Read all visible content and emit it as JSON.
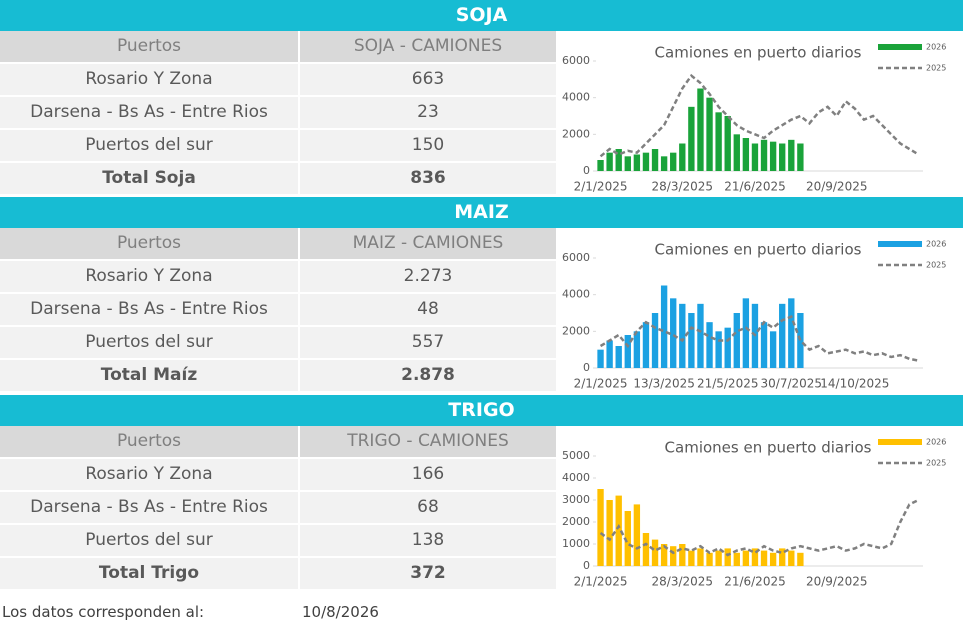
{
  "sections": [
    {
      "title": "SOJA",
      "table": {
        "header": [
          "Puertos",
          "SOJA - CAMIONES"
        ],
        "rows": [
          [
            "Rosario Y Zona",
            "663"
          ],
          [
            "Darsena - Bs As - Entre Rios",
            "23"
          ],
          [
            "Puertos del sur",
            "150"
          ],
          [
            "Total Soja",
            "836"
          ]
        ]
      }
    },
    {
      "title": "MAIZ",
      "table": {
        "header": [
          "Puertos",
          "MAIZ - CAMIONES"
        ],
        "rows": [
          [
            "Rosario Y Zona",
            "2.273"
          ],
          [
            "Darsena - Bs As - Entre Rios",
            "48"
          ],
          [
            "Puertos del sur",
            "557"
          ],
          [
            "Total Maíz",
            "2.878"
          ]
        ]
      }
    },
    {
      "title": "TRIGO",
      "table": {
        "header": [
          "Puertos",
          "TRIGO - CAMIONES"
        ],
        "rows": [
          [
            "Rosario Y Zona",
            "166"
          ],
          [
            "Darsena - Bs As - Entre Rios",
            "68"
          ],
          [
            "Puertos del sur",
            "138"
          ],
          [
            "Total Trigo",
            "372"
          ]
        ]
      }
    }
  ],
  "footer": {
    "label": "Los datos corresponden al:",
    "date": "10/8/2026"
  },
  "chart_data": [
    {
      "type": "bar",
      "title": "Camiones en puerto diarios",
      "categories": [
        "2/1/2025",
        null,
        null,
        null,
        null,
        null,
        null,
        null,
        null,
        "28/3/2025",
        null,
        null,
        null,
        null,
        null,
        null,
        null,
        "21/6/2025",
        null,
        null,
        null,
        null,
        null,
        null,
        null,
        null,
        "20/9/2025",
        null,
        null,
        null,
        null,
        null,
        null,
        null,
        null,
        null
      ],
      "ylim": [
        0,
        6000
      ],
      "yticks": [
        0,
        2000,
        4000,
        6000
      ],
      "series": [
        {
          "name": "2026",
          "type": "bar",
          "color": "#1aa33a",
          "values": [
            600,
            1000,
            1200,
            800,
            900,
            1000,
            1200,
            800,
            1000,
            1500,
            3500,
            4500,
            4000,
            3200,
            3000,
            2000,
            1800,
            1500,
            1700,
            1600,
            1500,
            1700,
            1500,
            null,
            null,
            null,
            null,
            null,
            null,
            null,
            null,
            null,
            null,
            null,
            null,
            null
          ]
        },
        {
          "name": "2025",
          "type": "line",
          "color": "#808080",
          "values": [
            800,
            1200,
            900,
            1100,
            1000,
            1500,
            2000,
            2500,
            3500,
            4500,
            5200,
            4800,
            4200,
            3500,
            3000,
            2500,
            2200,
            2000,
            1800,
            2200,
            2500,
            2800,
            3000,
            2600,
            3200,
            3500,
            3000,
            3800,
            3400,
            2800,
            3000,
            2500,
            2000,
            1500,
            1200,
            900
          ]
        }
      ]
    },
    {
      "type": "bar",
      "title": "Camiones en puerto diarios",
      "categories": [
        "2/1/2025",
        null,
        null,
        null,
        null,
        null,
        null,
        "13/3/2025",
        null,
        null,
        null,
        null,
        null,
        null,
        "21/5/2025",
        null,
        null,
        null,
        null,
        null,
        null,
        "30/7/2025",
        null,
        null,
        null,
        null,
        null,
        null,
        "14/10/2025",
        null,
        null,
        null,
        null,
        null,
        null,
        null
      ],
      "ylim": [
        0,
        6000
      ],
      "yticks": [
        0,
        2000,
        4000,
        6000
      ],
      "series": [
        {
          "name": "2026",
          "type": "bar",
          "color": "#1ba1e2",
          "values": [
            1000,
            1500,
            1200,
            1800,
            2000,
            2500,
            3000,
            4500,
            3800,
            3500,
            3000,
            3500,
            2500,
            2000,
            2200,
            3000,
            3800,
            3500,
            2500,
            2000,
            3500,
            3800,
            3000,
            null,
            null,
            null,
            null,
            null,
            null,
            null,
            null,
            null,
            null,
            null,
            null,
            null
          ]
        },
        {
          "name": "2025",
          "type": "line",
          "color": "#808080",
          "values": [
            1200,
            1500,
            1800,
            1200,
            2000,
            2500,
            2200,
            2000,
            1800,
            1500,
            2200,
            2000,
            1700,
            1500,
            1500,
            2000,
            2200,
            1800,
            2500,
            2200,
            2600,
            2800,
            1500,
            1000,
            1200,
            800,
            900,
            1000,
            800,
            900,
            700,
            800,
            600,
            700,
            500,
            400
          ]
        }
      ]
    },
    {
      "type": "bar",
      "title": "Camiones en puerto diarios",
      "categories": [
        "2/1/2025",
        null,
        null,
        null,
        null,
        null,
        null,
        null,
        null,
        "28/3/2025",
        null,
        null,
        null,
        null,
        null,
        null,
        null,
        "21/6/2025",
        null,
        null,
        null,
        null,
        null,
        null,
        null,
        null,
        "20/9/2025",
        null,
        null,
        null,
        null,
        null,
        null,
        null,
        null,
        null
      ],
      "ylim": [
        0,
        5000
      ],
      "yticks": [
        0,
        1000,
        2000,
        3000,
        4000,
        5000
      ],
      "series": [
        {
          "name": "2026",
          "type": "bar",
          "color": "#ffc000",
          "values": [
            3500,
            3000,
            3200,
            2500,
            2800,
            1500,
            1200,
            1000,
            900,
            1000,
            700,
            800,
            600,
            700,
            800,
            600,
            700,
            800,
            700,
            600,
            800,
            700,
            600,
            null,
            null,
            null,
            null,
            null,
            null,
            null,
            null,
            null,
            null,
            null,
            null,
            null
          ]
        },
        {
          "name": "2025",
          "type": "line",
          "color": "#808080",
          "values": [
            1500,
            1200,
            1800,
            1000,
            800,
            1000,
            700,
            900,
            600,
            800,
            700,
            900,
            600,
            800,
            500,
            700,
            800,
            600,
            900,
            700,
            600,
            800,
            900,
            800,
            700,
            800,
            900,
            700,
            800,
            1000,
            900,
            800,
            1000,
            2000,
            2800,
            3000
          ]
        }
      ]
    }
  ]
}
